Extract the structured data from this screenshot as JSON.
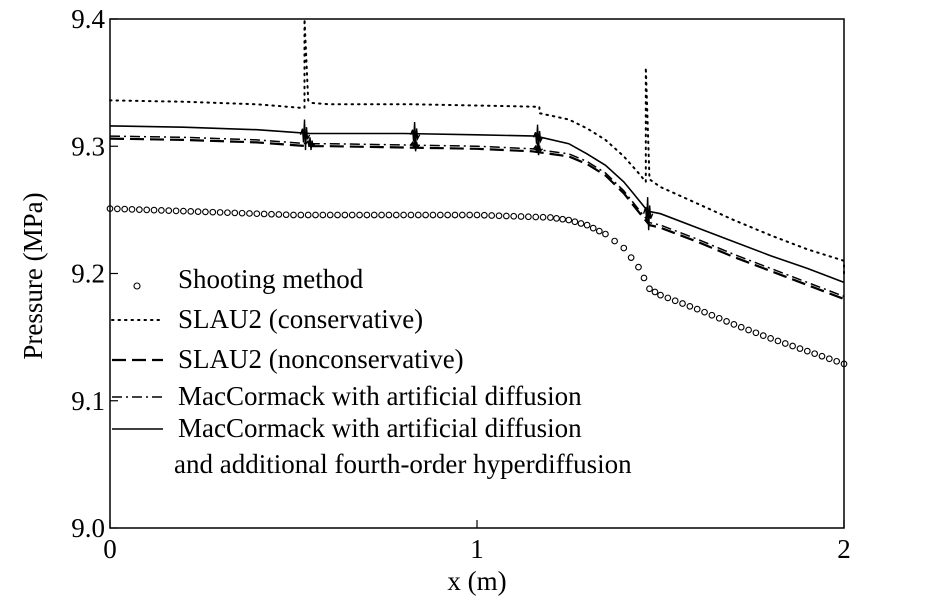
{
  "chart_data": {
    "type": "line",
    "title": "",
    "xlabel": "x (m)",
    "ylabel": "Pressure (MPa)",
    "xlim": [
      0,
      2
    ],
    "ylim": [
      9.0,
      9.4
    ],
    "xticks": [
      "0",
      "1",
      "2"
    ],
    "yticks": [
      "9.0",
      "9.1",
      "9.2",
      "9.3",
      "9.4"
    ],
    "grid": false,
    "legend_position": "center-left",
    "series": [
      {
        "name": "Shooting method",
        "style": "circles",
        "x": [
          0,
          0.1,
          0.2,
          0.3,
          0.4,
          0.5,
          0.6,
          0.7,
          0.8,
          0.9,
          1.0,
          1.1,
          1.2,
          1.25,
          1.3,
          1.35,
          1.4,
          1.44,
          1.47,
          1.5,
          1.6,
          1.7,
          1.8,
          1.9,
          2.0
        ],
        "y": [
          9.251,
          9.25,
          9.249,
          9.248,
          9.247,
          9.246,
          9.246,
          9.246,
          9.246,
          9.246,
          9.246,
          9.245,
          9.244,
          9.242,
          9.238,
          9.231,
          9.22,
          9.205,
          9.188,
          9.183,
          9.172,
          9.16,
          9.149,
          9.139,
          9.129
        ]
      },
      {
        "name": "SLAU2 (conservative)",
        "style": "dotted",
        "x": [
          0,
          0.2,
          0.4,
          0.53,
          0.53,
          0.54,
          0.55,
          0.6,
          0.8,
          0.83,
          1.0,
          1.17,
          1.17,
          1.25,
          1.3,
          1.35,
          1.4,
          1.44,
          1.46,
          1.46,
          1.47,
          1.5,
          1.6,
          1.7,
          1.8,
          1.9,
          2.0,
          2.0
        ],
        "y": [
          9.336,
          9.335,
          9.333,
          9.33,
          9.4,
          9.336,
          9.334,
          9.333,
          9.333,
          9.333,
          9.332,
          9.331,
          9.326,
          9.321,
          9.314,
          9.305,
          9.292,
          9.279,
          9.272,
          9.362,
          9.274,
          9.268,
          9.255,
          9.242,
          9.23,
          9.219,
          9.21,
          9.2
        ]
      },
      {
        "name": "SLAU2 (nonconservative)",
        "style": "dashed",
        "x": [
          0,
          0.2,
          0.4,
          0.54,
          0.6,
          0.8,
          1.0,
          1.15,
          1.25,
          1.3,
          1.35,
          1.4,
          1.45,
          1.47,
          1.5,
          1.6,
          1.7,
          1.8,
          1.9,
          2.0
        ],
        "y": [
          9.306,
          9.305,
          9.303,
          9.3,
          9.3,
          9.299,
          9.298,
          9.296,
          9.292,
          9.286,
          9.277,
          9.263,
          9.245,
          9.238,
          9.236,
          9.225,
          9.213,
          9.202,
          9.191,
          9.18
        ]
      },
      {
        "name": "MacCormack with artificial diffusion",
        "style": "dash-dot",
        "x": [
          0,
          0.2,
          0.4,
          0.54,
          0.6,
          0.8,
          1.0,
          1.15,
          1.25,
          1.3,
          1.35,
          1.4,
          1.45,
          1.47,
          1.5,
          1.6,
          1.7,
          1.8,
          1.9,
          2.0
        ],
        "y": [
          9.308,
          9.307,
          9.305,
          9.302,
          9.302,
          9.301,
          9.3,
          9.298,
          9.294,
          9.288,
          9.279,
          9.265,
          9.247,
          9.24,
          9.238,
          9.227,
          9.215,
          9.204,
          9.193,
          9.182
        ]
      },
      {
        "name": "MacCormack with artificial diffusion and additional fourth-order hyperdiffusion",
        "label_lines": [
          "MacCormack with artificial diffusion",
          "and additional fourth-order hyperdiffusion"
        ],
        "style": "solid",
        "x": [
          0,
          0.2,
          0.4,
          0.5,
          0.545,
          0.6,
          0.8,
          1.0,
          1.16,
          1.25,
          1.3,
          1.35,
          1.4,
          1.44,
          1.465,
          1.5,
          1.6,
          1.7,
          1.8,
          1.9,
          2.0
        ],
        "y": [
          9.316,
          9.315,
          9.313,
          9.311,
          9.31,
          9.31,
          9.31,
          9.309,
          9.308,
          9.302,
          9.294,
          9.285,
          9.272,
          9.258,
          9.249,
          9.247,
          9.236,
          9.225,
          9.214,
          9.204,
          9.193
        ]
      }
    ],
    "oscillations": [
      {
        "series": 4,
        "x": 0.53,
        "y": 9.309,
        "amp": 0.012
      },
      {
        "series": 4,
        "x": 0.83,
        "y": 9.309,
        "amp": 0.01
      },
      {
        "series": 4,
        "x": 1.165,
        "y": 9.307,
        "amp": 0.01
      },
      {
        "series": 4,
        "x": 1.465,
        "y": 9.247,
        "amp": 0.013
      },
      {
        "series": 3,
        "x": 0.545,
        "y": 9.302,
        "amp": 0.005
      },
      {
        "series": 3,
        "x": 0.83,
        "y": 9.301,
        "amp": 0.005
      },
      {
        "series": 3,
        "x": 1.165,
        "y": 9.298,
        "amp": 0.005
      }
    ]
  }
}
